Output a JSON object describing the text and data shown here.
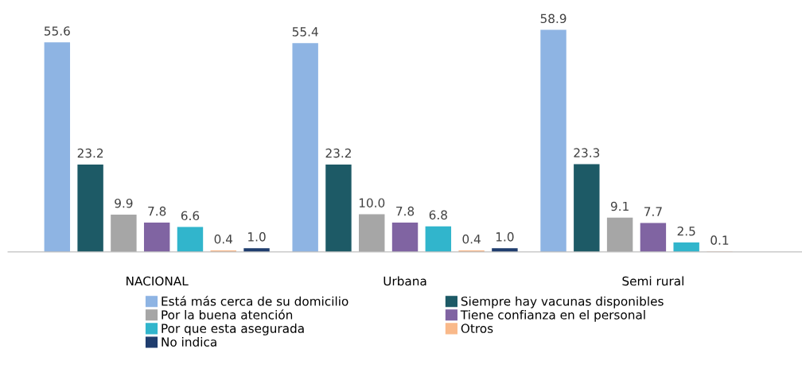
{
  "chart_data": {
    "type": "bar",
    "categories": [
      "NACIONAL",
      "Urbana",
      "Semi rural"
    ],
    "series": [
      {
        "name": "Está más cerca de su domicilio",
        "color": "#8eb4e3",
        "values": [
          55.6,
          55.4,
          58.9
        ],
        "value_labels": [
          "55.6",
          "55.4",
          "58.9"
        ]
      },
      {
        "name": "Siempre hay vacunas disponibles",
        "color": "#1d5a66",
        "values": [
          23.2,
          23.2,
          23.3
        ],
        "value_labels": [
          "23.2",
          "23.2",
          "23.3"
        ]
      },
      {
        "name": "Por la buena atención",
        "color": "#a6a6a6",
        "values": [
          9.9,
          10,
          9.1
        ],
        "value_labels": [
          "9.9",
          "10.0",
          "9.1"
        ]
      },
      {
        "name": "Tiene confianza en el personal",
        "color": "#8064a2",
        "values": [
          7.8,
          7.8,
          7.7
        ],
        "value_labels": [
          "7.8",
          "7.8",
          "7.7"
        ]
      },
      {
        "name": "Por que esta asegurada",
        "color": "#31b5cc",
        "values": [
          6.6,
          6.8,
          2.5
        ],
        "value_labels": [
          "6.6",
          "6.8",
          "2.5"
        ]
      },
      {
        "name": "Otros",
        "color": "#f9b98a",
        "values": [
          0.4,
          0.4,
          0.1
        ],
        "value_labels": [
          "0.4",
          "0.4",
          "0.1"
        ]
      },
      {
        "name": "No indica",
        "color": "#1f3d6e",
        "values": [
          1,
          1,
          null
        ],
        "value_labels": [
          "1.0",
          "1.0",
          null
        ]
      }
    ],
    "grid": false,
    "legend": "bottom"
  }
}
